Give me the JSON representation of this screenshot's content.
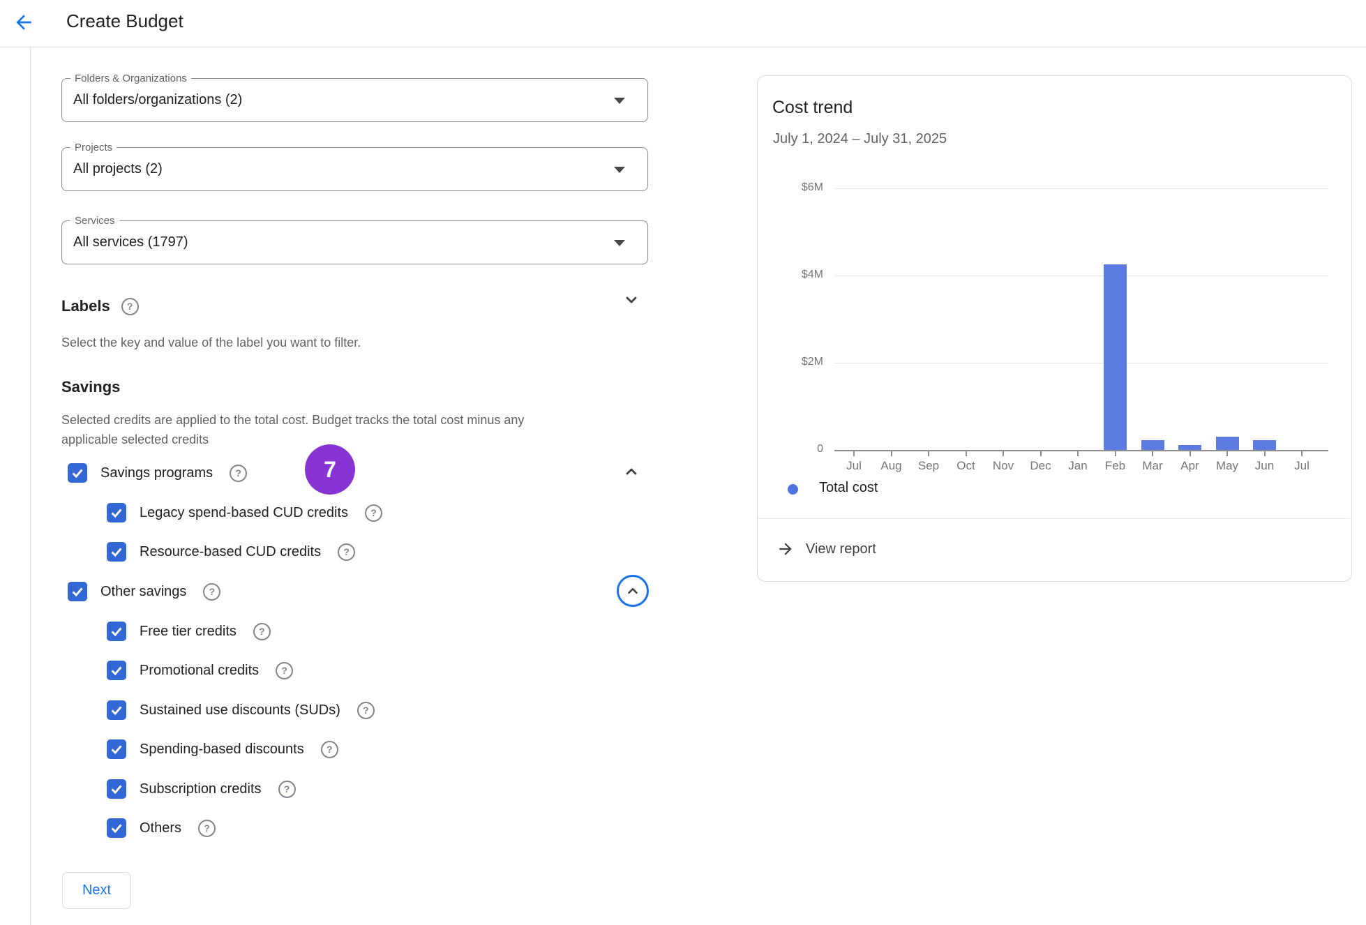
{
  "header": {
    "title": "Create Budget"
  },
  "filters": {
    "folders": {
      "label": "Folders & Organizations",
      "value": "All folders/organizations (2)"
    },
    "projects": {
      "label": "Projects",
      "value": "All projects (2)"
    },
    "services": {
      "label": "Services",
      "value": "All services (1797)"
    }
  },
  "labels_section": {
    "title": "Labels",
    "description": "Select the key and value of the label you want to filter."
  },
  "savings": {
    "title": "Savings",
    "description_line1": "Selected credits are applied to the total cost. Budget tracks the total cost minus any",
    "description_line2": "applicable selected credits",
    "badge_count": "7",
    "rows": [
      {
        "label": "Savings programs",
        "indent": 0,
        "checked": true
      },
      {
        "label": "Legacy spend-based CUD credits",
        "indent": 1,
        "checked": true
      },
      {
        "label": "Resource-based CUD credits",
        "indent": 1,
        "checked": true
      },
      {
        "label": "Other savings",
        "indent": 0,
        "checked": true
      },
      {
        "label": "Free tier credits",
        "indent": 1,
        "checked": true
      },
      {
        "label": "Promotional credits",
        "indent": 1,
        "checked": true
      },
      {
        "label": "Sustained use discounts (SUDs)",
        "indent": 1,
        "checked": true
      },
      {
        "label": "Spending-based discounts",
        "indent": 1,
        "checked": true
      },
      {
        "label": "Subscription credits",
        "indent": 1,
        "checked": true
      },
      {
        "label": "Others",
        "indent": 1,
        "checked": true
      }
    ]
  },
  "next_button_label": "Next",
  "card": {
    "view_report_label": "View report"
  },
  "chart_data": {
    "type": "bar",
    "title": "Cost trend",
    "subtitle": "July 1, 2024 – July 31, 2025",
    "categories": [
      "Jul",
      "Aug",
      "Sep",
      "Oct",
      "Nov",
      "Dec",
      "Jan",
      "Feb",
      "Mar",
      "Apr",
      "May",
      "Jun",
      "Jul"
    ],
    "series": [
      {
        "name": "Total cost",
        "values": [
          0,
          0,
          0,
          0,
          0,
          0,
          0,
          4.26,
          0.22,
          0.11,
          0.3,
          0.22,
          0
        ]
      }
    ],
    "value_unit": "M USD",
    "yticks": [
      {
        "value": 6,
        "label": "$6M"
      },
      {
        "value": 4,
        "label": "$4M"
      },
      {
        "value": 2,
        "label": "$2M"
      },
      {
        "value": 0,
        "label": "0"
      }
    ],
    "ylim": [
      0,
      6.3
    ],
    "grid": true,
    "legend_position": "bottom",
    "legend": [
      {
        "label": "Total cost",
        "color": "#4d74e0"
      }
    ]
  },
  "colors": {
    "accent_blue": "#1a73e8",
    "checkbox_blue": "#3367d6",
    "badge_purple": "#8833d4",
    "bar_blue": "#5c7ce2",
    "border_gray": "#dadce0",
    "text_primary": "#202124",
    "text_secondary": "#5f6368"
  }
}
